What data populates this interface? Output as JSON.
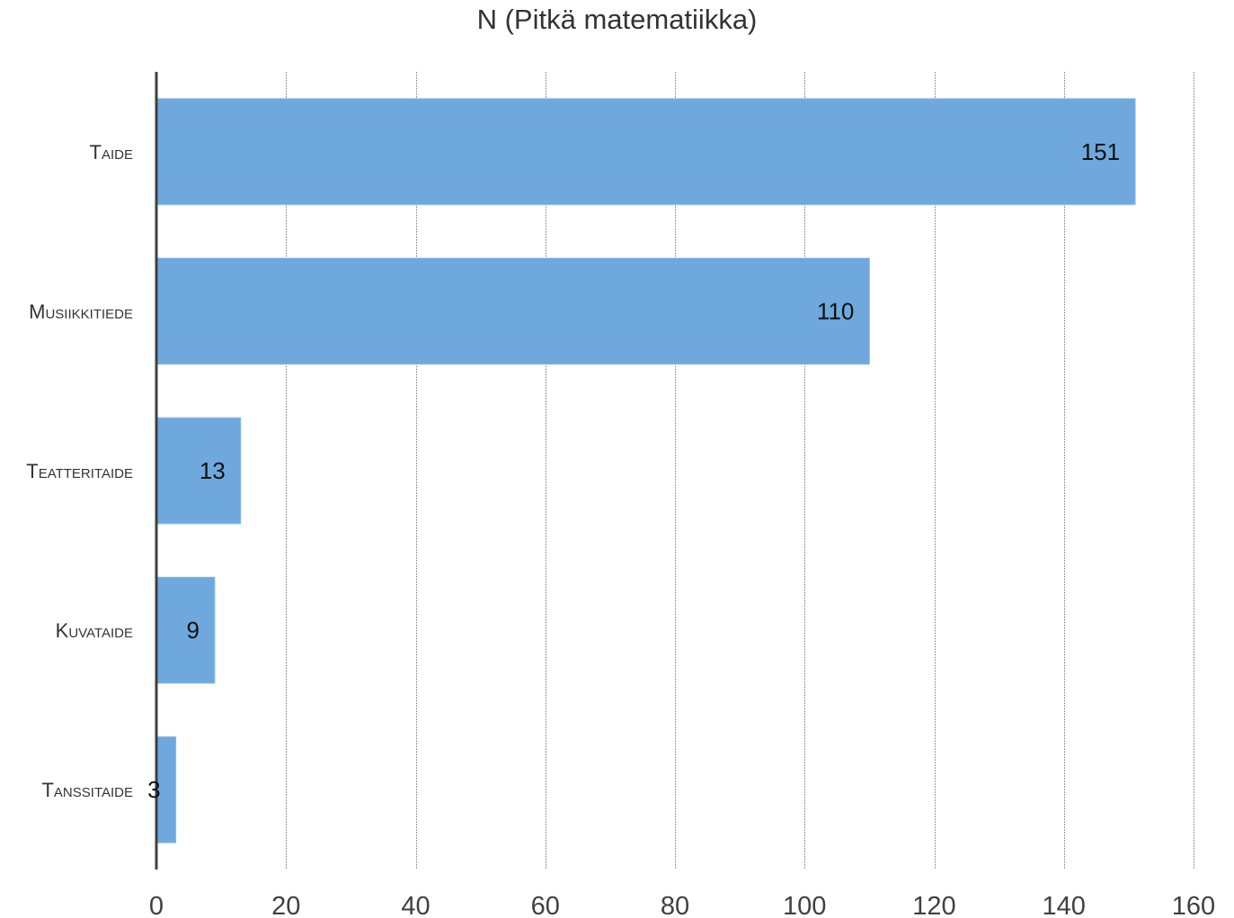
{
  "chart_data": {
    "type": "bar",
    "orientation": "horizontal",
    "title": "N (Pitkä matematiikka)",
    "categories": [
      "Taide",
      "Musiikkitiede",
      "Teatteritaide",
      "Kuvataide",
      "Tanssitaide"
    ],
    "values": [
      151,
      110,
      13,
      9,
      3
    ],
    "data_labels": [
      "151",
      "110",
      "13",
      "9",
      "3"
    ],
    "xlabel": "",
    "ylabel": "",
    "xlim": [
      0,
      160
    ],
    "xticks": [
      0,
      20,
      40,
      60,
      80,
      100,
      120,
      140,
      160
    ],
    "xtick_labels": [
      "0",
      "20",
      "40",
      "60",
      "80",
      "100",
      "120",
      "140",
      "160"
    ],
    "grid": "vertical",
    "legend": "none",
    "bar_color": "#6fa8dc"
  }
}
